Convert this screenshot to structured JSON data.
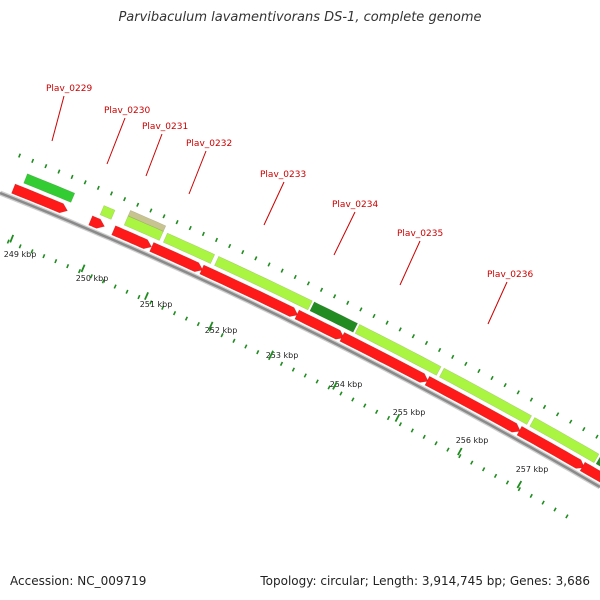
{
  "title": "Parvibaculum lavamentivorans DS-1, complete genome",
  "footer": {
    "accession": "Accession: NC_009719",
    "summary": "Topology: circular; Length: 3,914,745 bp; Genes: 3,686"
  },
  "colors": {
    "reverse_gene": "#ff1a1a",
    "forward_gene_light": "#aaf542",
    "forward_gene_green": "#33cc33",
    "forward_gene_dark": "#228b22",
    "forward_gene_tan": "#c8c490",
    "backbone": "#8a8a8a",
    "tick": "#1e8c1e",
    "label_red": "#cc0000"
  },
  "kbp_labels": [
    "249 kbp",
    "250 kbp",
    "251 kbp",
    "252 kbp",
    "253 kbp",
    "254 kbp",
    "255 kbp",
    "256 kbp",
    "257 kbp"
  ],
  "gene_labels": [
    "Plav_0229",
    "Plav_0230",
    "Plav_0231",
    "Plav_0232",
    "Plav_0233",
    "Plav_0234",
    "Plav_0235",
    "Plav_0236"
  ]
}
